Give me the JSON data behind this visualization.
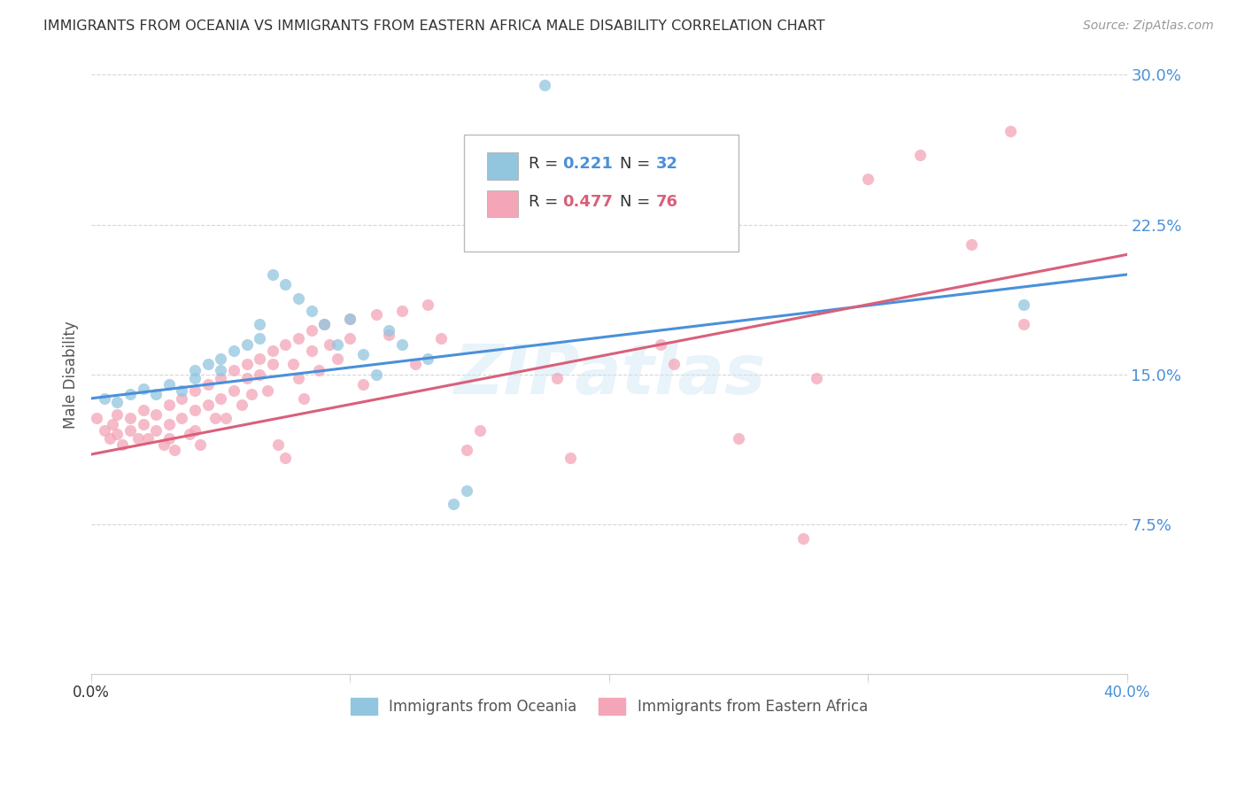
{
  "title": "IMMIGRANTS FROM OCEANIA VS IMMIGRANTS FROM EASTERN AFRICA MALE DISABILITY CORRELATION CHART",
  "source": "Source: ZipAtlas.com",
  "ylabel": "Male Disability",
  "xlim": [
    0.0,
    0.4
  ],
  "ylim": [
    0.0,
    0.3
  ],
  "yticks": [
    0.075,
    0.15,
    0.225,
    0.3
  ],
  "ytick_labels": [
    "7.5%",
    "15.0%",
    "22.5%",
    "30.0%"
  ],
  "xticks": [
    0.0,
    0.1,
    0.2,
    0.3,
    0.4
  ],
  "legend_label1": "Immigrants from Oceania",
  "legend_label2": "Immigrants from Eastern Africa",
  "color_blue": "#92c5de",
  "color_pink": "#f4a5b8",
  "color_blue_line": "#4a90d9",
  "color_pink_line": "#d9607a",
  "color_blue_text": "#4a90d9",
  "color_pink_text": "#d9607a",
  "trendline_blue": [
    0.0,
    0.138,
    0.4,
    0.2
  ],
  "trendline_pink": [
    0.0,
    0.11,
    0.4,
    0.21
  ],
  "watermark": "ZIPatlas",
  "blue_points": [
    [
      0.005,
      0.138
    ],
    [
      0.01,
      0.136
    ],
    [
      0.015,
      0.14
    ],
    [
      0.02,
      0.143
    ],
    [
      0.025,
      0.14
    ],
    [
      0.03,
      0.145
    ],
    [
      0.035,
      0.142
    ],
    [
      0.04,
      0.148
    ],
    [
      0.04,
      0.152
    ],
    [
      0.045,
      0.155
    ],
    [
      0.05,
      0.158
    ],
    [
      0.05,
      0.152
    ],
    [
      0.055,
      0.162
    ],
    [
      0.06,
      0.165
    ],
    [
      0.065,
      0.168
    ],
    [
      0.065,
      0.175
    ],
    [
      0.07,
      0.2
    ],
    [
      0.075,
      0.195
    ],
    [
      0.08,
      0.188
    ],
    [
      0.085,
      0.182
    ],
    [
      0.09,
      0.175
    ],
    [
      0.095,
      0.165
    ],
    [
      0.1,
      0.178
    ],
    [
      0.105,
      0.16
    ],
    [
      0.11,
      0.15
    ],
    [
      0.115,
      0.172
    ],
    [
      0.12,
      0.165
    ],
    [
      0.13,
      0.158
    ],
    [
      0.14,
      0.085
    ],
    [
      0.145,
      0.092
    ],
    [
      0.175,
      0.295
    ],
    [
      0.36,
      0.185
    ]
  ],
  "pink_points": [
    [
      0.002,
      0.128
    ],
    [
      0.005,
      0.122
    ],
    [
      0.007,
      0.118
    ],
    [
      0.008,
      0.125
    ],
    [
      0.01,
      0.13
    ],
    [
      0.01,
      0.12
    ],
    [
      0.012,
      0.115
    ],
    [
      0.015,
      0.128
    ],
    [
      0.015,
      0.122
    ],
    [
      0.018,
      0.118
    ],
    [
      0.02,
      0.132
    ],
    [
      0.02,
      0.125
    ],
    [
      0.022,
      0.118
    ],
    [
      0.025,
      0.13
    ],
    [
      0.025,
      0.122
    ],
    [
      0.028,
      0.115
    ],
    [
      0.03,
      0.135
    ],
    [
      0.03,
      0.125
    ],
    [
      0.03,
      0.118
    ],
    [
      0.032,
      0.112
    ],
    [
      0.035,
      0.138
    ],
    [
      0.035,
      0.128
    ],
    [
      0.038,
      0.12
    ],
    [
      0.04,
      0.142
    ],
    [
      0.04,
      0.132
    ],
    [
      0.04,
      0.122
    ],
    [
      0.042,
      0.115
    ],
    [
      0.045,
      0.145
    ],
    [
      0.045,
      0.135
    ],
    [
      0.048,
      0.128
    ],
    [
      0.05,
      0.148
    ],
    [
      0.05,
      0.138
    ],
    [
      0.052,
      0.128
    ],
    [
      0.055,
      0.152
    ],
    [
      0.055,
      0.142
    ],
    [
      0.058,
      0.135
    ],
    [
      0.06,
      0.155
    ],
    [
      0.06,
      0.148
    ],
    [
      0.062,
      0.14
    ],
    [
      0.065,
      0.158
    ],
    [
      0.065,
      0.15
    ],
    [
      0.068,
      0.142
    ],
    [
      0.07,
      0.162
    ],
    [
      0.07,
      0.155
    ],
    [
      0.072,
      0.115
    ],
    [
      0.075,
      0.165
    ],
    [
      0.075,
      0.108
    ],
    [
      0.078,
      0.155
    ],
    [
      0.08,
      0.168
    ],
    [
      0.08,
      0.148
    ],
    [
      0.082,
      0.138
    ],
    [
      0.085,
      0.172
    ],
    [
      0.085,
      0.162
    ],
    [
      0.088,
      0.152
    ],
    [
      0.09,
      0.175
    ],
    [
      0.092,
      0.165
    ],
    [
      0.095,
      0.158
    ],
    [
      0.1,
      0.178
    ],
    [
      0.1,
      0.168
    ],
    [
      0.105,
      0.145
    ],
    [
      0.11,
      0.18
    ],
    [
      0.115,
      0.17
    ],
    [
      0.12,
      0.182
    ],
    [
      0.125,
      0.155
    ],
    [
      0.13,
      0.185
    ],
    [
      0.135,
      0.168
    ],
    [
      0.145,
      0.112
    ],
    [
      0.15,
      0.122
    ],
    [
      0.18,
      0.148
    ],
    [
      0.185,
      0.108
    ],
    [
      0.22,
      0.165
    ],
    [
      0.225,
      0.155
    ],
    [
      0.25,
      0.118
    ],
    [
      0.28,
      0.148
    ],
    [
      0.3,
      0.248
    ],
    [
      0.32,
      0.26
    ],
    [
      0.34,
      0.215
    ],
    [
      0.355,
      0.272
    ],
    [
      0.36,
      0.175
    ],
    [
      0.275,
      0.068
    ]
  ]
}
